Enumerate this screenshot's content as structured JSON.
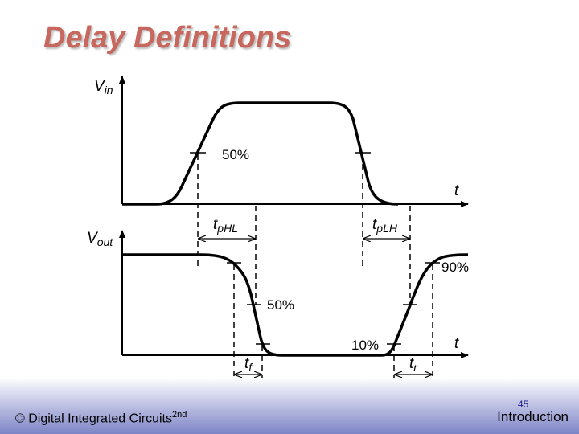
{
  "slide": {
    "title": "Delay Definitions",
    "page_number": "45",
    "section": "Introduction"
  },
  "footer": {
    "copyright": "© Digital Integrated Circuits",
    "edition": "2nd"
  },
  "diagram": {
    "vin_label": {
      "main": "V",
      "sub": "in"
    },
    "vout_label": {
      "main": "V",
      "sub": "out"
    },
    "time_label": "t",
    "tphl": {
      "main": "t",
      "sub": "pHL"
    },
    "tplh": {
      "main": "t",
      "sub": "pLH"
    },
    "tf": {
      "main": "t",
      "sub": "f"
    },
    "tr": {
      "main": "t",
      "sub": "r"
    },
    "pct_50_in": "50%",
    "pct_50_out": "50%",
    "pct_10": "10%",
    "pct_90": "90%"
  }
}
